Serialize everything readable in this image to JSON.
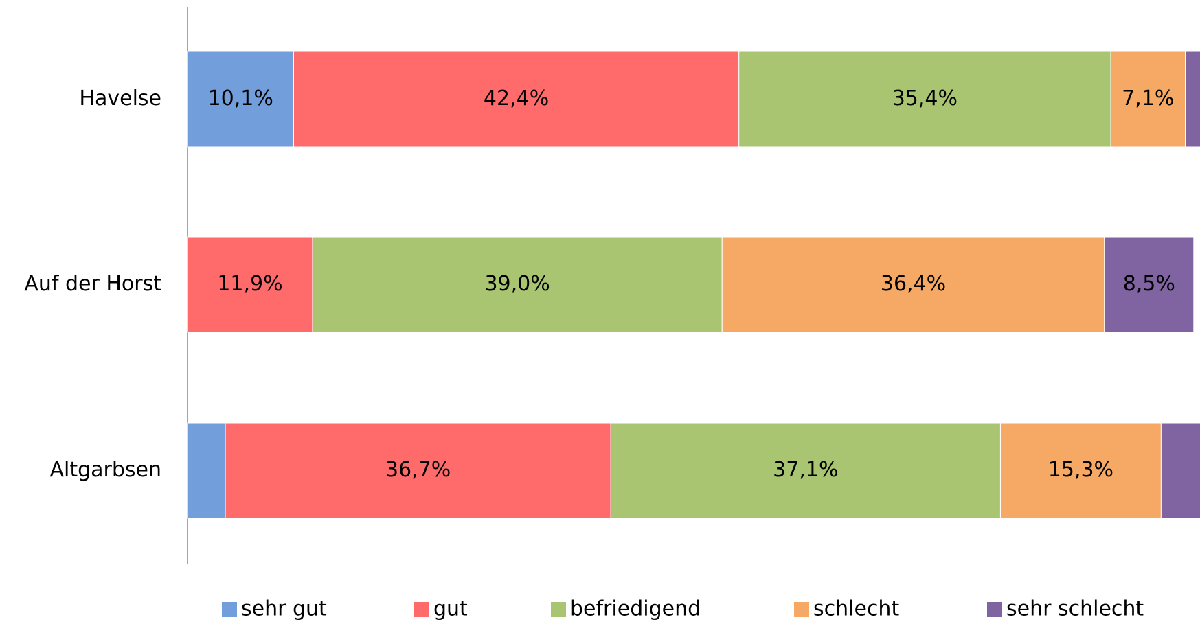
{
  "chart_data": {
    "type": "stacked-bar",
    "categories": [
      "Havelse",
      "Auf der Horst",
      "Altgarbsen"
    ],
    "series": [
      {
        "name": "sehr gut",
        "color": "#729fdb",
        "values": [
          10.1,
          0,
          3.6
        ],
        "value_labels": [
          "10,1%",
          null,
          null
        ]
      },
      {
        "name": "gut",
        "color": "#ff6b6b",
        "values": [
          42.4,
          11.9,
          36.7
        ],
        "value_labels": [
          "42,4%",
          "11,9%",
          "36,7%"
        ]
      },
      {
        "name": "befriedigend",
        "color": "#a9c572",
        "values": [
          35.4,
          39.0,
          37.1
        ],
        "value_labels": [
          "35,4%",
          "39,0%",
          "37,1%"
        ]
      },
      {
        "name": "schlecht",
        "color": "#f6a865",
        "values": [
          7.1,
          36.4,
          15.3
        ],
        "value_labels": [
          "7,1%",
          "36,4%",
          "15,3%"
        ]
      },
      {
        "name": "sehr schlecht",
        "color": "#8064a2",
        "values": [
          5.0,
          8.5,
          7.3
        ],
        "value_labels": [
          null,
          "8,5%",
          null
        ]
      }
    ],
    "xlim": [
      0,
      100
    ],
    "legend": "bottom"
  }
}
